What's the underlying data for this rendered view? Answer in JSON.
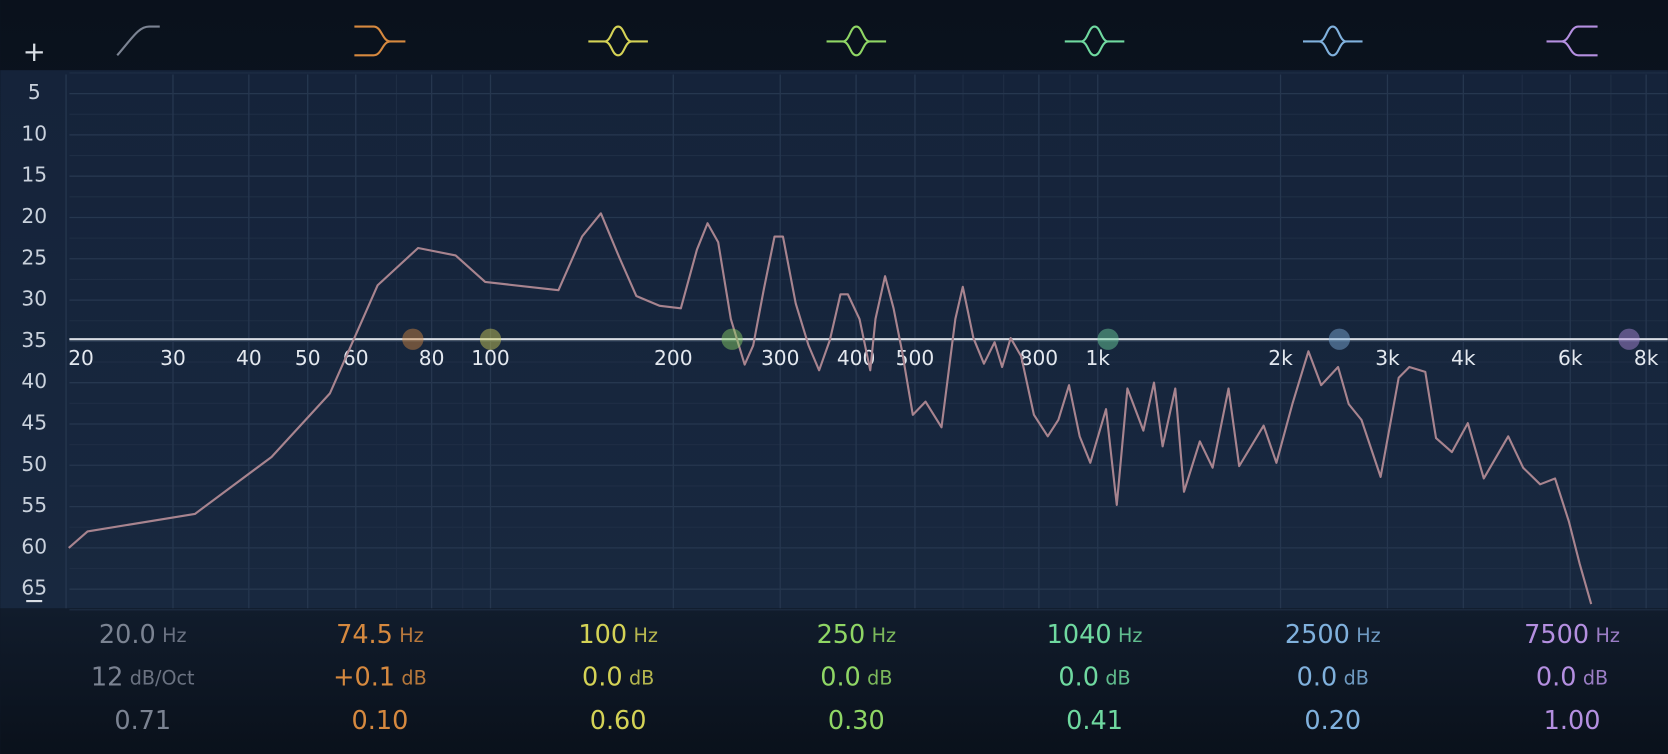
{
  "controls": {
    "add": "+",
    "remove": "−"
  },
  "db_scale": [
    5,
    10,
    15,
    20,
    25,
    30,
    35,
    40,
    45,
    50,
    55,
    60,
    65
  ],
  "freq_scale": [
    20,
    30,
    40,
    50,
    60,
    80,
    100,
    200,
    300,
    400,
    500,
    800,
    {
      "value": 1000,
      "label": "1k"
    },
    {
      "value": 2000,
      "label": "2k"
    },
    {
      "value": 3000,
      "label": "3k"
    },
    {
      "value": 4000,
      "label": "4k"
    },
    {
      "value": 6000,
      "label": "6k"
    },
    {
      "value": 8000,
      "label": "8k"
    }
  ],
  "spectrum": {
    "color": "#a8848f",
    "freq": [
      20.2,
      21.7,
      32.6,
      43.6,
      54.4,
      65.2,
      76,
      87.6,
      98,
      129.4,
      141.5,
      152,
      162.9,
      173.8,
      190,
      205.8,
      218.7,
      227.7,
      237.1,
      248.8,
      262.2,
      270.8,
      281.9,
      293.6,
      303.1,
      318.1,
      334,
      347.7,
      362,
      377,
      387.7,
      405.3,
      422,
      430.5,
      446.4,
      461,
      476.2,
      496,
      520.5,
      552.9,
      582.7,
      599.5,
      624.1,
      649.6,
      676.4,
      695.8,
      718.6,
      747.9,
      785,
      827.5,
      861.5,
      896.9,
      933.8,
      972,
      1032,
      1075,
      1119,
      1189,
      1238,
      1279,
      1342,
      1387,
      1473,
      1546,
      1642,
      1710,
      1876,
      1969,
      2092,
      2223,
      2333,
      2488,
      2590,
      2719,
      2923,
      3131,
      3260,
      3462,
      3606,
      3830,
      4069,
      4322,
      4743,
      5017,
      5352,
      5664,
      5969,
      6215,
      6496
    ],
    "level": [
      60,
      58,
      55.9,
      49,
      41.3,
      28.2,
      23.7,
      24.6,
      27.8,
      28.8,
      22.3,
      19.5,
      24.8,
      29.5,
      30.7,
      31,
      23.9,
      20.7,
      23,
      32.3,
      37.8,
      35.5,
      28.7,
      22.3,
      22.3,
      30.4,
      35.5,
      38.5,
      34.9,
      29.3,
      29.3,
      32.3,
      38.5,
      32.3,
      27.1,
      31,
      36.2,
      43.9,
      42.3,
      45.4,
      32.3,
      28.4,
      34.6,
      37.7,
      35.1,
      38.1,
      34.6,
      36.8,
      43.9,
      46.5,
      44.5,
      40.3,
      46.5,
      49.7,
      43.2,
      54.8,
      40.7,
      45.8,
      40,
      47.7,
      40.7,
      53.2,
      47.1,
      50.3,
      40.7,
      50.1,
      45.2,
      49.7,
      42.6,
      36.2,
      40.3,
      38.1,
      42.6,
      44.5,
      51.4,
      39.4,
      38.1,
      38.7,
      46.7,
      48.4,
      44.9,
      51.6,
      46.5,
      50.3,
      52.3,
      51.6,
      56.8,
      61.9,
      66.8
    ]
  },
  "bands": [
    {
      "type": "highpass",
      "color": "#7b8392",
      "freq": "20.0",
      "freq_unit": "Hz",
      "slope": "12",
      "slope_unit": "dB/Oct",
      "q": "0.71"
    },
    {
      "type": "lowshelf",
      "color": "#d6893f",
      "freq": "74.5",
      "freq_unit": "Hz",
      "gain": "+0.1",
      "gain_unit": "dB",
      "q": "0.10"
    },
    {
      "type": "bell",
      "color": "#d4d256",
      "freq": "100",
      "freq_unit": "Hz",
      "gain": "0.0",
      "gain_unit": "dB",
      "q": "0.60"
    },
    {
      "type": "bell",
      "color": "#8fd665",
      "freq": "250",
      "freq_unit": "Hz",
      "gain": "0.0",
      "gain_unit": "dB",
      "q": "0.30"
    },
    {
      "type": "bell",
      "color": "#6fd9a0",
      "freq": "1040",
      "freq_unit": "Hz",
      "gain": "0.0",
      "gain_unit": "dB",
      "q": "0.41"
    },
    {
      "type": "bell",
      "color": "#80b1dd",
      "freq": "2500",
      "freq_unit": "Hz",
      "gain": "0.0",
      "gain_unit": "dB",
      "q": "0.20"
    },
    {
      "type": "highshelf",
      "color": "#b48fe0",
      "freq": "7500",
      "freq_unit": "Hz",
      "gain": "0.0",
      "gain_unit": "dB",
      "q": "1.00"
    }
  ]
}
